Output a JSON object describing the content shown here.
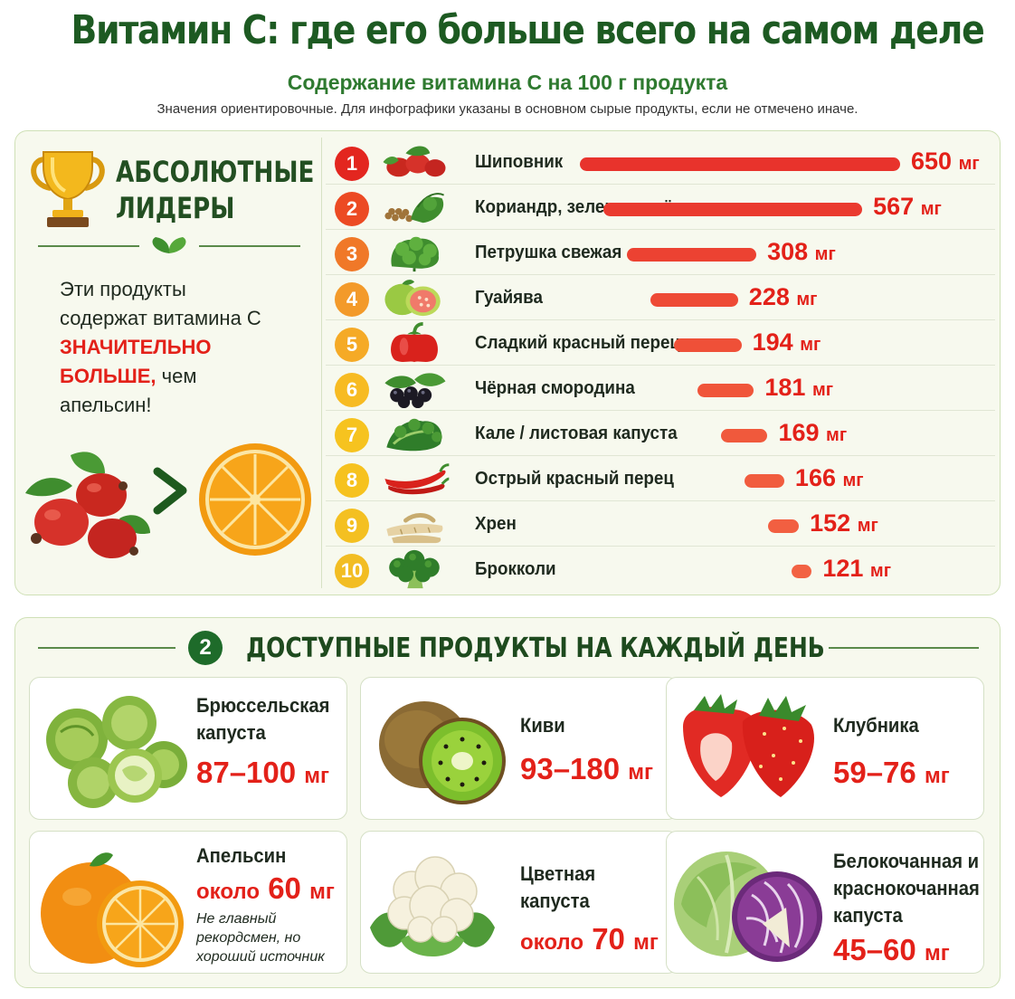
{
  "header": {
    "title": "Витамин С: где его больше всего на самом деле",
    "subtitle": "Содержание витамина С на 100 г продукта",
    "note": "Значения ориентировочные. Для инфографики указаны в основном сырые продукты, если не отмечено иначе."
  },
  "leaders": {
    "title_line1": "АБСОЛЮТНЫЕ",
    "title_line2": "ЛИДЕРЫ",
    "text_line1": "Эти продукты",
    "text_line2": "содержат витамина С",
    "text_strong1": "ЗНАЧИТЕЛЬНО",
    "text_strong2": "БОЛЬШЕ,",
    "text_line3": " чем",
    "text_line4": "апельсин!",
    "compare_sign": ">"
  },
  "chart_data": {
    "type": "bar",
    "unit": "мг",
    "categories": [
      "Шиповник",
      "Кориандр, зелень сушёная",
      "Петрушка свежая",
      "Гуайява",
      "Сладкий красный перец",
      "Чёрная смородина",
      "Кале / листовая капуста",
      "Острый красный перец",
      "Хрен",
      "Брокколи"
    ],
    "ranks": [
      "1",
      "2",
      "3",
      "4",
      "5",
      "6",
      "7",
      "8",
      "9",
      "10"
    ],
    "values": [
      650,
      567,
      308,
      228,
      194,
      181,
      169,
      166,
      152,
      121
    ],
    "value_labels": [
      "650",
      "567",
      "308",
      "228",
      "194",
      "181",
      "169",
      "166",
      "152",
      "121"
    ],
    "icons": [
      "rosehip-icon",
      "coriander-icon",
      "parsley-icon",
      "guava-icon",
      "red-pepper-icon",
      "blackcurrant-icon",
      "kale-icon",
      "chili-icon",
      "horseradish-icon",
      "broccoli-icon"
    ],
    "rank_colors": [
      "#e3261f",
      "#ec4a23",
      "#f07828",
      "#f39a2a",
      "#f5aa26",
      "#f7bb22",
      "#f6c31f",
      "#f6c21e",
      "#f4c021",
      "#f2bd23"
    ],
    "bar_colors": [
      "#e8332c",
      "#ea3a2f",
      "#ec4232",
      "#ee4a35",
      "#ef5038",
      "#f0553a",
      "#f0593c",
      "#f15c3e",
      "#f25f41",
      "#f26243"
    ]
  },
  "daily": {
    "number": "2",
    "title": "ДОСТУПНЫЕ ПРОДУКТЫ НА КАЖДЫЙ ДЕНЬ",
    "cards": [
      {
        "name_line1": "Брюссельская",
        "name_line2": "капуста",
        "value": "87–100",
        "unit": "мг",
        "icon": "brussels-sprouts-icon"
      },
      {
        "name_line1": "Киви",
        "value": "93–180",
        "unit": "мг",
        "icon": "kiwi-icon"
      },
      {
        "name_line1": "Клубника",
        "value": "59–76",
        "unit": "мг",
        "icon": "strawberry-icon"
      },
      {
        "name_line1": "Апельсин",
        "prefix": "около",
        "value": "60",
        "unit": "мг",
        "note_line1": "Не главный",
        "note_line2": "рекордсмен, но",
        "note_line3": "хороший источник",
        "icon": "orange-icon"
      },
      {
        "name_line1": "Цветная",
        "name_line2": "капуста",
        "prefix": "около",
        "value": "70",
        "unit": "мг",
        "icon": "cauliflower-icon"
      },
      {
        "name_line1": "Белокочанная и",
        "name_line2": "краснокочанная",
        "name_line3": "капуста",
        "value": "45–60",
        "unit": "мг",
        "icon": "cabbage-icon"
      }
    ]
  }
}
